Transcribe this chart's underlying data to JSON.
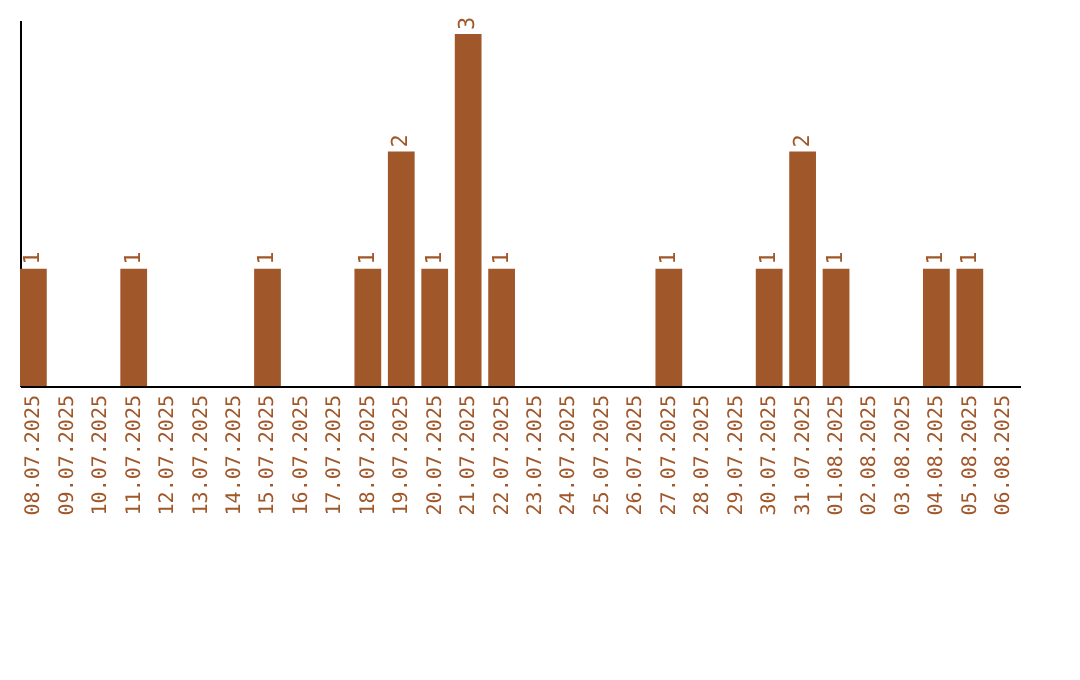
{
  "chart_data": {
    "type": "bar",
    "categories": [
      "08.07.2025",
      "09.07.2025",
      "10.07.2025",
      "11.07.2025",
      "12.07.2025",
      "13.07.2025",
      "14.07.2025",
      "15.07.2025",
      "16.07.2025",
      "17.07.2025",
      "18.07.2025",
      "19.07.2025",
      "20.07.2025",
      "21.07.2025",
      "22.07.2025",
      "23.07.2025",
      "24.07.2025",
      "25.07.2025",
      "26.07.2025",
      "27.07.2025",
      "28.07.2025",
      "29.07.2025",
      "30.07.2025",
      "31.07.2025",
      "01.08.2025",
      "02.08.2025",
      "03.08.2025",
      "04.08.2025",
      "05.08.2025",
      "06.08.2025"
    ],
    "values": [
      1,
      0,
      0,
      1,
      0,
      0,
      0,
      1,
      0,
      0,
      1,
      2,
      1,
      3,
      1,
      0,
      0,
      0,
      0,
      1,
      0,
      0,
      1,
      2,
      1,
      0,
      0,
      1,
      1,
      0
    ],
    "value_labels": [
      "1",
      null,
      null,
      "1",
      null,
      null,
      null,
      "1",
      null,
      null,
      "1",
      "2",
      "1",
      "3",
      "1",
      null,
      null,
      null,
      null,
      "1",
      null,
      null,
      "1",
      "2",
      "1",
      null,
      null,
      "1",
      "1",
      null
    ],
    "color": "#a0572a",
    "ylim": [
      0,
      3.12
    ],
    "tick_labels": "x",
    "grid": false
  }
}
